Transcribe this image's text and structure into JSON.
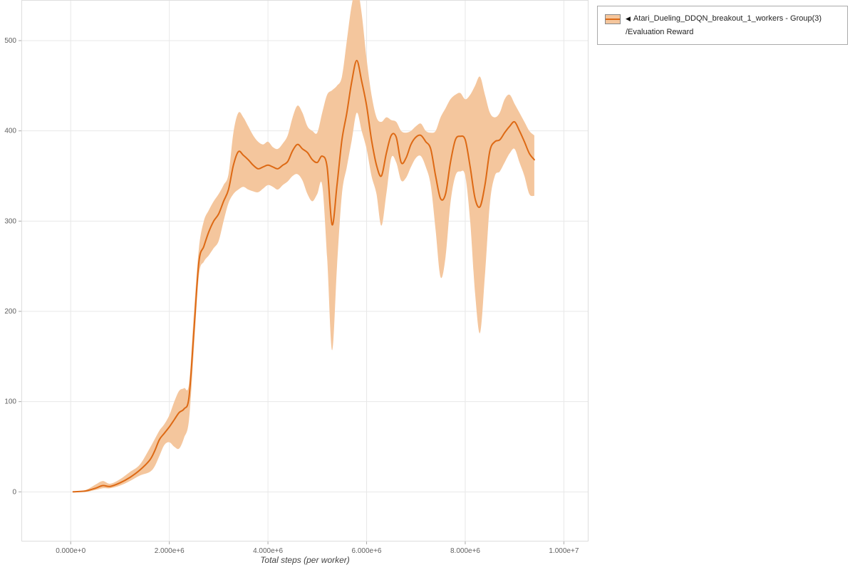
{
  "legend": {
    "collapse_icon": "◀",
    "series_name": "Atari_Dueling_DDQN_breakout_1_workers - Group(3)",
    "metric": "/Evaluation Reward"
  },
  "chart_data": {
    "type": "line",
    "title": "",
    "xlabel": "Total steps (per worker)",
    "ylabel": "",
    "x_unit": 1000000,
    "xlim": [
      -1000000,
      10500000
    ],
    "ylim": [
      -55,
      545
    ],
    "grid": true,
    "legend_position": "top-right-outside",
    "xticks": {
      "values": [
        0,
        2,
        4,
        6,
        8,
        10
      ],
      "labels": [
        "0.000e+0",
        "2.000e+6",
        "4.000e+6",
        "6.000e+6",
        "8.000e+6",
        "1.000e+7"
      ]
    },
    "yticks": {
      "values": [
        0,
        100,
        200,
        300,
        400,
        500
      ],
      "labels": [
        "0",
        "100",
        "200",
        "300",
        "400",
        "500"
      ]
    },
    "colors": {
      "line": "#dd6914",
      "band": "#f4c69d",
      "grid": "#e8e8e8",
      "frame": "#dedede",
      "tick": "#aaaaaa",
      "text": "#606060"
    },
    "series": [
      {
        "name": "Atari_Dueling_DDQN_breakout_1_workers - Group(3)/Evaluation Reward",
        "x": [
          0.05,
          0.3,
          0.5,
          0.65,
          0.8,
          1.0,
          1.2,
          1.4,
          1.6,
          1.7,
          1.8,
          1.9,
          2.0,
          2.1,
          2.2,
          2.3,
          2.4,
          2.5,
          2.6,
          2.7,
          2.8,
          2.9,
          3.0,
          3.1,
          3.2,
          3.3,
          3.4,
          3.5,
          3.6,
          3.7,
          3.8,
          3.9,
          4.0,
          4.1,
          4.2,
          4.3,
          4.4,
          4.5,
          4.6,
          4.7,
          4.8,
          4.9,
          5.0,
          5.1,
          5.2,
          5.3,
          5.4,
          5.5,
          5.6,
          5.7,
          5.8,
          5.9,
          6.0,
          6.1,
          6.2,
          6.3,
          6.4,
          6.5,
          6.6,
          6.7,
          6.8,
          6.9,
          7.0,
          7.1,
          7.2,
          7.3,
          7.4,
          7.5,
          7.6,
          7.7,
          7.8,
          7.9,
          8.0,
          8.1,
          8.2,
          8.3,
          8.4,
          8.5,
          8.6,
          8.7,
          8.8,
          8.9,
          9.0,
          9.1,
          9.2,
          9.3,
          9.4
        ],
        "mean": [
          0,
          1,
          4,
          7,
          6,
          10,
          16,
          24,
          35,
          45,
          58,
          65,
          72,
          80,
          88,
          92,
          105,
          180,
          255,
          272,
          288,
          300,
          308,
          322,
          335,
          362,
          377,
          373,
          368,
          362,
          358,
          360,
          362,
          360,
          358,
          362,
          366,
          378,
          385,
          380,
          376,
          368,
          365,
          372,
          360,
          296,
          340,
          390,
          420,
          455,
          478,
          455,
          428,
          390,
          362,
          350,
          375,
          395,
          393,
          365,
          370,
          385,
          393,
          395,
          388,
          380,
          350,
          325,
          330,
          365,
          390,
          394,
          390,
          360,
          325,
          316,
          340,
          378,
          388,
          390,
          398,
          405,
          410,
          400,
          388,
          375,
          368
        ],
        "lower": [
          0,
          0,
          2,
          4,
          4,
          7,
          12,
          18,
          22,
          28,
          40,
          52,
          55,
          50,
          48,
          60,
          80,
          160,
          240,
          255,
          262,
          270,
          278,
          300,
          320,
          330,
          335,
          338,
          335,
          333,
          332,
          336,
          340,
          338,
          335,
          340,
          344,
          350,
          352,
          345,
          330,
          322,
          330,
          340,
          260,
          157,
          250,
          330,
          360,
          390,
          420,
          400,
          380,
          350,
          330,
          295,
          330,
          370,
          365,
          345,
          348,
          360,
          370,
          372,
          360,
          340,
          290,
          238,
          260,
          320,
          350,
          355,
          350,
          300,
          220,
          176,
          240,
          320,
          350,
          355,
          365,
          375,
          380,
          365,
          350,
          330,
          328
        ],
        "upper": [
          0,
          2,
          8,
          12,
          9,
          14,
          22,
          30,
          48,
          58,
          68,
          75,
          85,
          100,
          112,
          115,
          120,
          200,
          270,
          300,
          312,
          322,
          330,
          340,
          352,
          398,
          420,
          415,
          405,
          395,
          388,
          385,
          388,
          382,
          380,
          386,
          395,
          415,
          428,
          420,
          405,
          400,
          398,
          420,
          440,
          445,
          450,
          460,
          500,
          540,
          560,
          530,
          480,
          440,
          415,
          410,
          415,
          412,
          410,
          400,
          398,
          400,
          405,
          408,
          400,
          398,
          400,
          415,
          425,
          435,
          440,
          442,
          435,
          440,
          450,
          460,
          440,
          420,
          415,
          420,
          435,
          440,
          430,
          420,
          410,
          400,
          395
        ]
      }
    ]
  }
}
